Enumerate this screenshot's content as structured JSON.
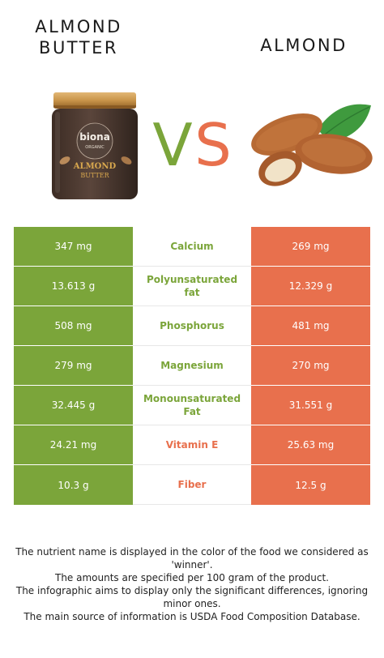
{
  "foods": {
    "left": {
      "title_line1": "ALMOND",
      "title_line2": "BUTTER",
      "color": "#7ba53a",
      "jar_label": {
        "brand": "biona",
        "sub": "ORGANIC",
        "name": "ALMOND",
        "name2": "BUTTER"
      }
    },
    "right": {
      "title": "ALMOND",
      "color": "#e8704d"
    }
  },
  "vs": {
    "v": "V",
    "s": "S"
  },
  "nutrients": [
    {
      "name": "Calcium",
      "left": "347 mg",
      "right": "269 mg",
      "winner": "left"
    },
    {
      "name": "Polyunsaturated fat",
      "left": "13.613 g",
      "right": "12.329 g",
      "winner": "left"
    },
    {
      "name": "Phosphorus",
      "left": "508 mg",
      "right": "481 mg",
      "winner": "left"
    },
    {
      "name": "Magnesium",
      "left": "279 mg",
      "right": "270 mg",
      "winner": "left"
    },
    {
      "name": "Monounsaturated Fat",
      "left": "32.445 g",
      "right": "31.551 g",
      "winner": "left"
    },
    {
      "name": "Vitamin E",
      "left": "24.21 mg",
      "right": "25.63 mg",
      "winner": "right"
    },
    {
      "name": "Fiber",
      "left": "10.3 g",
      "right": "12.5 g",
      "winner": "right"
    }
  ],
  "footer": {
    "line1": "The nutrient name is displayed in the color of the food we considered as 'winner'.",
    "line2": "The amounts are specified per 100 gram of the product.",
    "line3": "The infographic aims to display only the significant differences, ignoring minor ones.",
    "line4": "The main source of information is USDA Food Composition Database."
  }
}
